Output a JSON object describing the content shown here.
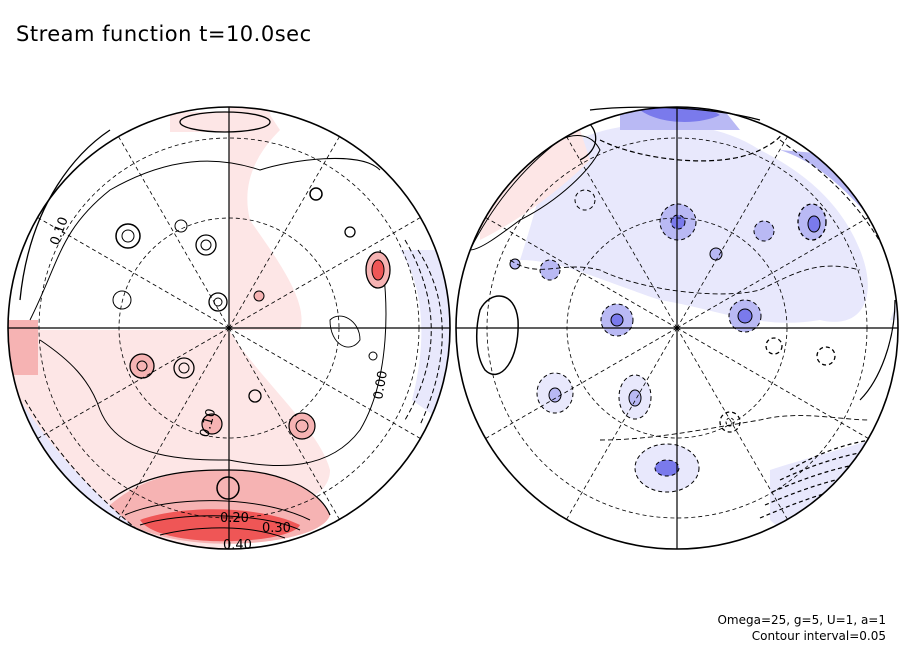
{
  "title": "Stream function t=10.0sec",
  "params": {
    "line1": "Omega=25, g=5, U=1, a=1",
    "line2": "Contour interval=0.05"
  },
  "colors": {
    "positive_light": "#fde6e6",
    "positive_mid": "#f6b3b3",
    "positive_strong": "#ef5656",
    "negative_light": "#e8e8fc",
    "negative_mid": "#b9b9f4",
    "negative_strong": "#7a7aec",
    "line": "#000000"
  },
  "contour_labels": {
    "left_a": "0.10",
    "left_b": "0.00",
    "left_c": "0.10",
    "left_d": "0.20",
    "left_e": "0.30",
    "left_f": "0.40"
  }
}
